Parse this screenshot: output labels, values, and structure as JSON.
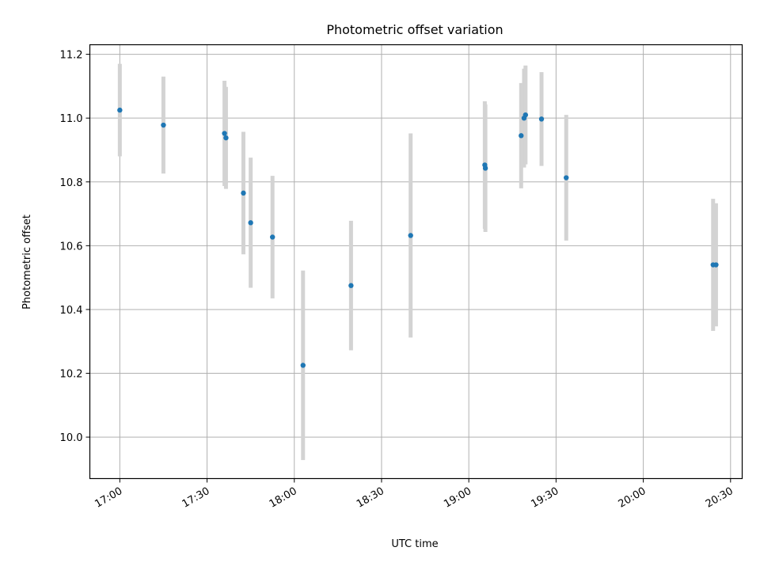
{
  "chart_data": {
    "type": "scatter",
    "title": "Photometric offset variation",
    "xlabel": "UTC time",
    "ylabel": "Photometric offset",
    "x_tick_labels": [
      "17:00",
      "17:30",
      "18:00",
      "18:30",
      "19:00",
      "19:30",
      "20:00",
      "20:30"
    ],
    "y_tick_labels": [
      "10.0",
      "10.2",
      "10.4",
      "10.6",
      "10.8",
      "11.0",
      "11.2"
    ],
    "x_ticks": [
      "17:00",
      "17:30",
      "18:00",
      "18:30",
      "19:00",
      "19:30",
      "20:00",
      "20:30"
    ],
    "y_ticks": [
      10.0,
      10.2,
      10.4,
      10.6,
      10.8,
      11.0,
      11.2
    ],
    "xlim": [
      "16:49.7",
      "20:34"
    ],
    "ylim": [
      9.87,
      11.23
    ],
    "grid": true,
    "marker_color": "#1f77b4",
    "errorbar_color": "#d3d3d3",
    "points": [
      {
        "x": "17:00",
        "y": 11.025,
        "yerr": 0.145
      },
      {
        "x": "17:15",
        "y": 10.978,
        "yerr": 0.152
      },
      {
        "x": "17:36",
        "y": 10.952,
        "yerr": 0.165
      },
      {
        "x": "17:36.5",
        "y": 10.938,
        "yerr": 0.16
      },
      {
        "x": "17:42.5",
        "y": 10.765,
        "yerr": 0.192
      },
      {
        "x": "17:45",
        "y": 10.672,
        "yerr": 0.204
      },
      {
        "x": "17:52.5",
        "y": 10.627,
        "yerr": 0.192
      },
      {
        "x": "18:03",
        "y": 10.225,
        "yerr": 0.297
      },
      {
        "x": "18:19.5",
        "y": 10.475,
        "yerr": 0.203
      },
      {
        "x": "18:40",
        "y": 10.632,
        "yerr": 0.32
      },
      {
        "x": "19:05.5",
        "y": 10.853,
        "yerr": 0.2
      },
      {
        "x": "19:05.7",
        "y": 10.843,
        "yerr": 0.2
      },
      {
        "x": "19:18",
        "y": 10.945,
        "yerr": 0.165
      },
      {
        "x": "19:19",
        "y": 11.0,
        "yerr": 0.155
      },
      {
        "x": "19:19.5",
        "y": 11.01,
        "yerr": 0.155
      },
      {
        "x": "19:25",
        "y": 10.997,
        "yerr": 0.147
      },
      {
        "x": "19:33.5",
        "y": 10.813,
        "yerr": 0.197
      },
      {
        "x": "20:24",
        "y": 10.54,
        "yerr": 0.207
      },
      {
        "x": "20:25",
        "y": 10.54,
        "yerr": 0.193
      }
    ]
  }
}
